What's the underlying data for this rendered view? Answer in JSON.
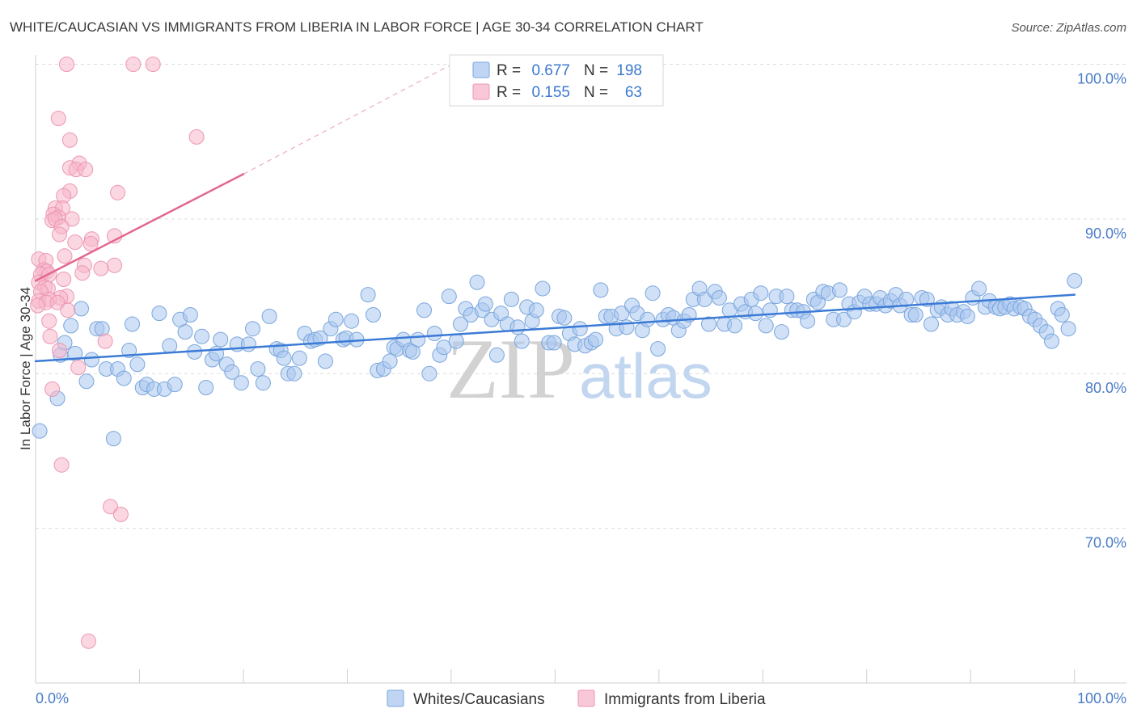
{
  "source": "Source: ZipAtlas.com",
  "watermark": {
    "zip": "ZIP",
    "atlas": "atlas"
  },
  "chart_data": {
    "type": "scatter",
    "title": "WHITE/CAUCASIAN VS IMMIGRANTS FROM LIBERIA IN LABOR FORCE | AGE 30-34 CORRELATION CHART",
    "ylabel": "In Labor Force | Age 30-34",
    "xlim": [
      0,
      105
    ],
    "ylim": [
      60,
      100.6
    ],
    "grid": true,
    "x_ticks": [
      0,
      10,
      20,
      30,
      40,
      50,
      60,
      70,
      80,
      90,
      100
    ],
    "x_tick_labels": [
      {
        "value": 0,
        "label": "0.0%"
      },
      {
        "value": 100,
        "label": "100.0%"
      }
    ],
    "y_ticks": [
      {
        "value": 100,
        "label": "100.0%"
      },
      {
        "value": 90,
        "label": "90.0%"
      },
      {
        "value": 80,
        "label": "80.0%"
      },
      {
        "value": 70,
        "label": "70.0%"
      }
    ],
    "legend_stats": [
      {
        "r_label": "R =",
        "r": "0.677",
        "n_label": "N =",
        "n": "198"
      },
      {
        "r_label": "R =",
        "r": "0.155",
        "n_label": "N =",
        "n": "63"
      }
    ],
    "series": [
      {
        "name": "Whites/Caucasians",
        "color": "#a9c7ef",
        "stroke_color": "#7aa6dd",
        "trend_color": "#3b7bd6",
        "trend": {
          "solid": [
            [
              0,
              80.8
            ],
            [
              100,
              85.1
            ]
          ]
        },
        "points": [
          [
            0.4,
            76.3
          ],
          [
            2.1,
            78.4
          ],
          [
            2.4,
            81.2
          ],
          [
            2.8,
            82.0
          ],
          [
            3.4,
            83.1
          ],
          [
            3.8,
            81.3
          ],
          [
            4.4,
            84.2
          ],
          [
            4.9,
            79.5
          ],
          [
            5.4,
            80.9
          ],
          [
            5.9,
            82.9
          ],
          [
            6.4,
            82.9
          ],
          [
            6.8,
            80.3
          ],
          [
            7.5,
            75.8
          ],
          [
            7.9,
            80.3
          ],
          [
            8.5,
            79.7
          ],
          [
            9.0,
            81.5
          ],
          [
            9.3,
            83.2
          ],
          [
            9.8,
            80.6
          ],
          [
            10.3,
            79.1
          ],
          [
            10.7,
            79.3
          ],
          [
            11.4,
            79.0
          ],
          [
            11.9,
            83.9
          ],
          [
            12.4,
            79.0
          ],
          [
            12.9,
            81.8
          ],
          [
            13.4,
            79.3
          ],
          [
            13.9,
            83.5
          ],
          [
            14.4,
            82.7
          ],
          [
            14.9,
            83.8
          ],
          [
            15.3,
            81.4
          ],
          [
            16.0,
            82.4
          ],
          [
            16.4,
            79.1
          ],
          [
            17.0,
            80.9
          ],
          [
            17.4,
            81.3
          ],
          [
            17.8,
            82.2
          ],
          [
            18.4,
            80.6
          ],
          [
            18.9,
            80.1
          ],
          [
            19.4,
            81.9
          ],
          [
            19.8,
            79.4
          ],
          [
            20.5,
            81.9
          ],
          [
            20.9,
            82.9
          ],
          [
            21.4,
            80.3
          ],
          [
            21.9,
            79.4
          ],
          [
            22.5,
            83.7
          ],
          [
            23.2,
            81.6
          ],
          [
            23.6,
            81.5
          ],
          [
            23.9,
            81.0
          ],
          [
            24.3,
            80.0
          ],
          [
            24.9,
            80.0
          ],
          [
            25.4,
            81.0
          ],
          [
            25.9,
            82.6
          ],
          [
            26.5,
            82.1
          ],
          [
            26.9,
            82.2
          ],
          [
            27.4,
            82.3
          ],
          [
            27.9,
            80.8
          ],
          [
            28.4,
            82.9
          ],
          [
            28.9,
            83.5
          ],
          [
            29.6,
            82.2
          ],
          [
            29.9,
            82.3
          ],
          [
            30.4,
            83.4
          ],
          [
            30.9,
            82.2
          ],
          [
            32.0,
            85.1
          ],
          [
            32.5,
            83.8
          ],
          [
            32.9,
            80.2
          ],
          [
            33.5,
            80.3
          ],
          [
            34.1,
            80.8
          ],
          [
            34.5,
            81.7
          ],
          [
            34.8,
            81.6
          ],
          [
            35.4,
            82.2
          ],
          [
            36.0,
            81.5
          ],
          [
            36.3,
            81.4
          ],
          [
            36.8,
            82.2
          ],
          [
            37.4,
            84.1
          ],
          [
            37.9,
            80.0
          ],
          [
            38.4,
            82.6
          ],
          [
            38.9,
            81.2
          ],
          [
            39.3,
            81.7
          ],
          [
            39.8,
            85.0
          ],
          [
            40.5,
            82.1
          ],
          [
            40.9,
            83.2
          ],
          [
            41.4,
            84.2
          ],
          [
            41.9,
            83.8
          ],
          [
            42.5,
            85.9
          ],
          [
            43.0,
            84.1
          ],
          [
            43.3,
            84.5
          ],
          [
            43.9,
            83.5
          ],
          [
            44.4,
            81.2
          ],
          [
            44.8,
            83.9
          ],
          [
            45.4,
            83.2
          ],
          [
            45.8,
            84.8
          ],
          [
            46.4,
            83.0
          ],
          [
            46.8,
            82.1
          ],
          [
            47.3,
            84.3
          ],
          [
            47.8,
            83.4
          ],
          [
            48.2,
            84.1
          ],
          [
            48.8,
            85.5
          ],
          [
            49.4,
            82.0
          ],
          [
            49.9,
            82.0
          ],
          [
            50.4,
            83.7
          ],
          [
            50.9,
            83.6
          ],
          [
            51.4,
            82.6
          ],
          [
            51.9,
            81.9
          ],
          [
            52.4,
            82.9
          ],
          [
            52.9,
            81.8
          ],
          [
            53.5,
            82.0
          ],
          [
            53.9,
            82.2
          ],
          [
            54.4,
            85.4
          ],
          [
            54.9,
            83.7
          ],
          [
            55.4,
            83.7
          ],
          [
            55.9,
            82.9
          ],
          [
            56.4,
            83.9
          ],
          [
            56.9,
            83.0
          ],
          [
            57.4,
            84.4
          ],
          [
            57.9,
            83.9
          ],
          [
            58.4,
            82.8
          ],
          [
            58.9,
            83.5
          ],
          [
            59.4,
            85.2
          ],
          [
            59.9,
            81.6
          ],
          [
            60.4,
            83.5
          ],
          [
            60.9,
            83.8
          ],
          [
            61.4,
            83.6
          ],
          [
            61.9,
            82.8
          ],
          [
            62.4,
            83.4
          ],
          [
            62.9,
            83.8
          ],
          [
            63.3,
            84.8
          ],
          [
            63.9,
            85.5
          ],
          [
            64.4,
            84.8
          ],
          [
            64.8,
            83.2
          ],
          [
            65.4,
            85.3
          ],
          [
            65.8,
            84.9
          ],
          [
            66.3,
            83.2
          ],
          [
            66.8,
            84.1
          ],
          [
            67.3,
            83.1
          ],
          [
            67.9,
            84.5
          ],
          [
            68.3,
            84.0
          ],
          [
            68.9,
            84.8
          ],
          [
            69.3,
            83.9
          ],
          [
            69.8,
            85.2
          ],
          [
            70.3,
            83.1
          ],
          [
            70.7,
            84.1
          ],
          [
            71.3,
            85.0
          ],
          [
            71.8,
            82.7
          ],
          [
            72.3,
            85.0
          ],
          [
            72.8,
            84.1
          ],
          [
            73.3,
            84.1
          ],
          [
            73.9,
            84.0
          ],
          [
            74.3,
            83.4
          ],
          [
            74.9,
            84.8
          ],
          [
            75.3,
            84.6
          ],
          [
            75.8,
            85.3
          ],
          [
            76.3,
            85.2
          ],
          [
            76.8,
            83.5
          ],
          [
            77.4,
            85.4
          ],
          [
            77.8,
            83.5
          ],
          [
            78.3,
            84.5
          ],
          [
            78.8,
            84.0
          ],
          [
            79.3,
            84.6
          ],
          [
            79.8,
            85.0
          ],
          [
            80.3,
            84.5
          ],
          [
            80.9,
            84.5
          ],
          [
            81.3,
            84.9
          ],
          [
            81.8,
            84.4
          ],
          [
            82.3,
            84.7
          ],
          [
            82.8,
            85.1
          ],
          [
            83.2,
            84.4
          ],
          [
            83.8,
            84.8
          ],
          [
            84.3,
            83.8
          ],
          [
            84.7,
            83.8
          ],
          [
            85.3,
            84.9
          ],
          [
            85.8,
            84.8
          ],
          [
            86.2,
            83.2
          ],
          [
            86.8,
            84.1
          ],
          [
            87.2,
            84.3
          ],
          [
            87.8,
            83.8
          ],
          [
            88.2,
            84.2
          ],
          [
            88.7,
            83.8
          ],
          [
            89.3,
            84.0
          ],
          [
            89.7,
            83.7
          ],
          [
            90.2,
            84.9
          ],
          [
            90.8,
            85.5
          ],
          [
            91.4,
            84.3
          ],
          [
            91.8,
            84.7
          ],
          [
            92.4,
            84.3
          ],
          [
            92.8,
            84.2
          ],
          [
            93.3,
            84.3
          ],
          [
            93.8,
            84.5
          ],
          [
            94.2,
            84.2
          ],
          [
            94.8,
            84.3
          ],
          [
            95.2,
            84.2
          ],
          [
            95.7,
            83.7
          ],
          [
            96.2,
            83.5
          ],
          [
            96.7,
            83.1
          ],
          [
            97.3,
            82.7
          ],
          [
            97.8,
            82.1
          ],
          [
            98.4,
            84.2
          ],
          [
            98.8,
            83.8
          ],
          [
            99.4,
            82.9
          ],
          [
            100.0,
            86.0
          ]
        ]
      },
      {
        "name": "Immigrants from Liberia",
        "color": "#f7b6cb",
        "stroke_color": "#ec97b3",
        "trend_color": "#e2678f",
        "trend": {
          "solid": [
            [
              0,
              86.0
            ],
            [
              20,
              92.9
            ]
          ],
          "dashed": [
            [
              20,
              92.9
            ],
            [
              41.5,
              100.5
            ]
          ]
        },
        "points": [
          [
            3.0,
            100.0
          ],
          [
            9.4,
            100.0
          ],
          [
            11.3,
            100.0
          ],
          [
            2.2,
            96.5
          ],
          [
            3.3,
            95.1
          ],
          [
            15.5,
            95.3
          ],
          [
            4.2,
            93.6
          ],
          [
            3.3,
            93.3
          ],
          [
            3.9,
            93.2
          ],
          [
            4.8,
            93.2
          ],
          [
            3.3,
            91.8
          ],
          [
            7.9,
            91.7
          ],
          [
            2.7,
            91.5
          ],
          [
            1.9,
            90.7
          ],
          [
            2.6,
            90.7
          ],
          [
            1.7,
            90.3
          ],
          [
            2.2,
            90.1
          ],
          [
            1.6,
            89.9
          ],
          [
            3.5,
            90.0
          ],
          [
            1.9,
            90.0
          ],
          [
            2.5,
            89.5
          ],
          [
            2.3,
            89.0
          ],
          [
            5.4,
            88.7
          ],
          [
            7.6,
            88.9
          ],
          [
            3.8,
            88.5
          ],
          [
            5.3,
            88.4
          ],
          [
            2.8,
            87.6
          ],
          [
            0.3,
            87.4
          ],
          [
            1.0,
            87.3
          ],
          [
            4.7,
            87.0
          ],
          [
            7.6,
            87.0
          ],
          [
            6.3,
            86.8
          ],
          [
            0.8,
            86.7
          ],
          [
            1.1,
            86.6
          ],
          [
            0.5,
            86.4
          ],
          [
            4.5,
            86.5
          ],
          [
            1.3,
            86.4
          ],
          [
            2.7,
            86.1
          ],
          [
            0.3,
            85.9
          ],
          [
            0.9,
            85.6
          ],
          [
            1.2,
            85.5
          ],
          [
            0.5,
            85.3
          ],
          [
            3.0,
            85.0
          ],
          [
            2.4,
            84.9
          ],
          [
            0.3,
            84.7
          ],
          [
            1.3,
            84.8
          ],
          [
            1.0,
            84.6
          ],
          [
            2.1,
            84.6
          ],
          [
            3.1,
            84.1
          ],
          [
            0.2,
            84.4
          ],
          [
            1.3,
            83.4
          ],
          [
            1.4,
            82.4
          ],
          [
            6.7,
            82.1
          ],
          [
            2.3,
            81.5
          ],
          [
            4.1,
            80.4
          ],
          [
            1.6,
            79.0
          ],
          [
            2.5,
            74.1
          ],
          [
            7.2,
            71.4
          ],
          [
            8.2,
            70.9
          ],
          [
            5.1,
            62.7
          ]
        ]
      }
    ]
  }
}
